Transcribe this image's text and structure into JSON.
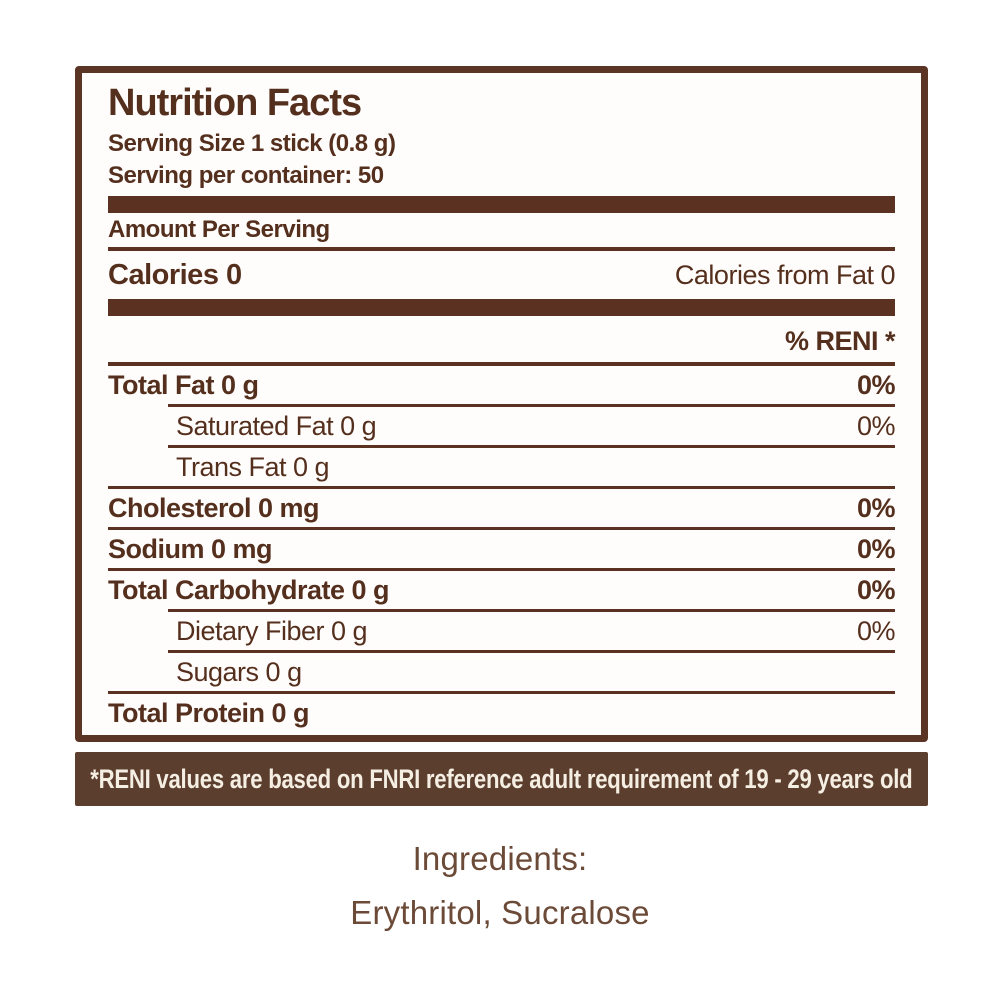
{
  "colors": {
    "label_text_brown": "#552f1d",
    "divider_brown": "#5b3222",
    "border_brown": "#5a3425",
    "footnote_background": "#5c3e2e",
    "footnote_text": "#f5eee2",
    "ingredients_text": "#6b4a38",
    "page_background": "#ffffff"
  },
  "label": {
    "title": "Nutrition Facts",
    "serving_size": "Serving Size 1 stick (0.8 g)",
    "servings_per_container": "Serving per container: 50",
    "amount_per_serving": "Amount Per Serving",
    "calories": "Calories 0",
    "calories_from_fat": "Calories from Fat 0",
    "reni_header": "% RENI *",
    "rows": [
      {
        "label": "Total Fat 0 g",
        "value": "0%"
      },
      {
        "label": "Saturated Fat 0 g",
        "value": "0%"
      },
      {
        "label": "Trans Fat 0 g",
        "value": ""
      },
      {
        "label": "Cholesterol 0 mg",
        "value": "0%"
      },
      {
        "label": "Sodium 0 mg",
        "value": "0%"
      },
      {
        "label": "Total Carbohydrate 0 g",
        "value": "0%"
      },
      {
        "label": "Dietary Fiber 0 g",
        "value": "0%"
      },
      {
        "label": "Sugars 0 g",
        "value": ""
      },
      {
        "label": "Total Protein 0 g",
        "value": ""
      }
    ],
    "footnote": "*RENI values are based on FNRI reference adult requirement of 19 - 29 years old"
  },
  "ingredients": {
    "heading": "Ingredients:",
    "list": "Erythritol, Sucralose"
  }
}
